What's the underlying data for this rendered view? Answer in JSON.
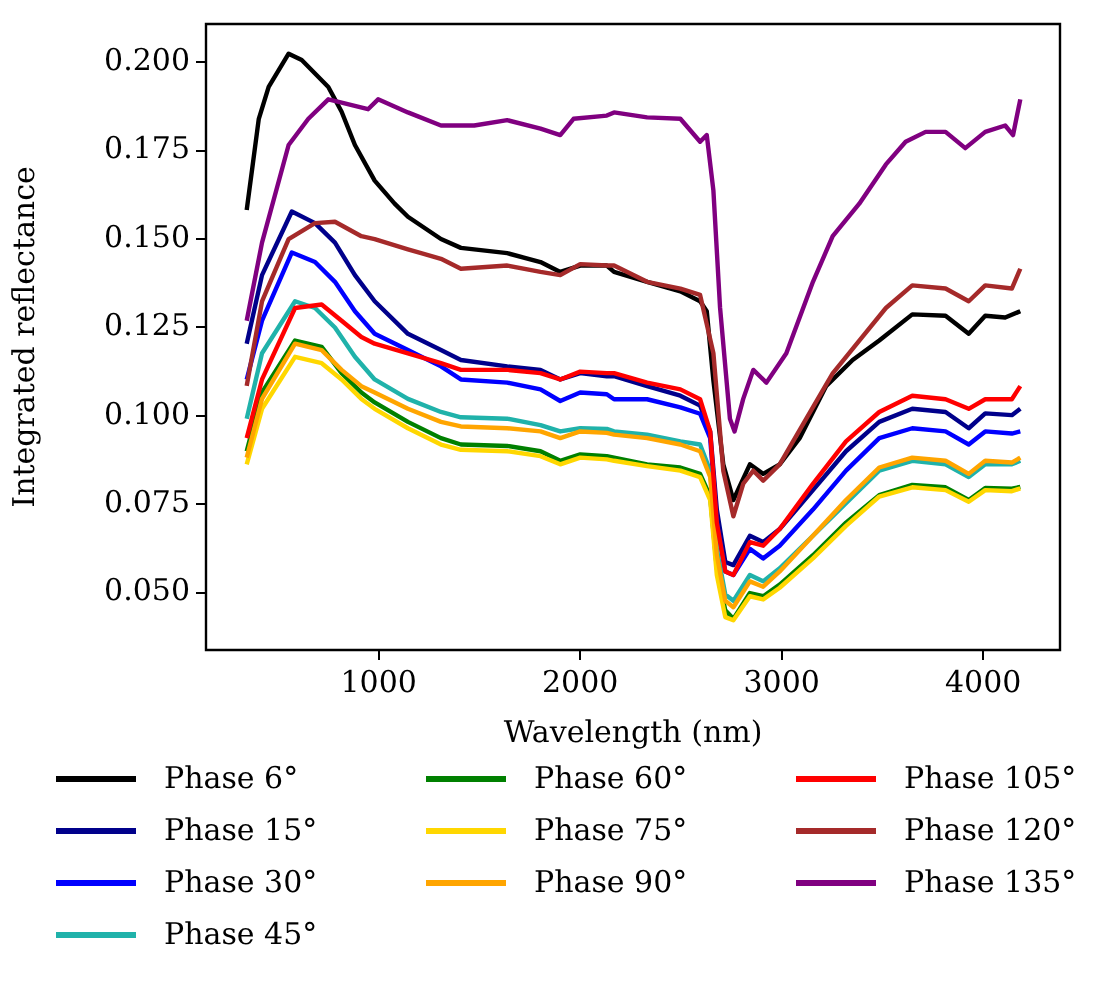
{
  "chart_data": {
    "type": "line",
    "xlabel": "Wavelength (nm)",
    "ylabel": "Integrated reflectance",
    "xlim": [
      143,
      4381
    ],
    "ylim": [
      0.0338,
      0.2108
    ],
    "xticks": [
      1000,
      2000,
      3000,
      4000
    ],
    "yticks": [
      {
        "value": 0.05,
        "label": "0.050"
      },
      0.075,
      {
        "value": 0.1,
        "label": "0.100"
      },
      0.125,
      {
        "value": 0.15,
        "label": "0.150"
      },
      0.175,
      {
        "value": 0.2,
        "label": "0.200"
      }
    ],
    "legend": "bottom",
    "line_style": "solid",
    "series": [
      {
        "name": "Phase 6°",
        "color": "#000000",
        "x": [
          345,
          405,
          454,
          553,
          618,
          750,
          816,
          882,
          980,
          1079,
          1145,
          1309,
          1408,
          1638,
          1803,
          1901,
          2000,
          2132,
          2168,
          2332,
          2497,
          2595,
          2628,
          2661,
          2710,
          2760,
          2842,
          2908,
          2990,
          3089,
          3220,
          3352,
          3484,
          3648,
          3813,
          3928,
          4010,
          4109,
          4184
        ],
        "values": [
          0.1582,
          0.184,
          0.193,
          0.2024,
          0.2006,
          0.193,
          0.186,
          0.1766,
          0.1665,
          0.16,
          0.1563,
          0.15,
          0.1475,
          0.146,
          0.1435,
          0.1407,
          0.1425,
          0.1425,
          0.1407,
          0.1379,
          0.1352,
          0.1324,
          0.1296,
          0.11,
          0.0863,
          0.0762,
          0.0863,
          0.0836,
          0.0863,
          0.0937,
          0.1084,
          0.1158,
          0.1213,
          0.1287,
          0.1283,
          0.1232,
          0.1283,
          0.1278,
          0.1296
        ]
      },
      {
        "name": "Phase 15°",
        "color": "#00008b",
        "x": [
          345,
          421,
          569,
          684,
          783,
          882,
          980,
          1145,
          1309,
          1408,
          1638,
          1803,
          1901,
          2000,
          2132,
          2168,
          2332,
          2497,
          2595,
          2645,
          2678,
          2720,
          2760,
          2842,
          2908,
          2990,
          3155,
          3319,
          3484,
          3648,
          3813,
          3928,
          4010,
          4142,
          4184
        ],
        "values": [
          0.1204,
          0.1398,
          0.1578,
          0.1545,
          0.149,
          0.1398,
          0.1324,
          0.1232,
          0.1186,
          0.1158,
          0.114,
          0.113,
          0.1103,
          0.1121,
          0.1112,
          0.1112,
          0.1084,
          0.1057,
          0.1029,
          0.0956,
          0.0735,
          0.0587,
          0.0578,
          0.0661,
          0.0643,
          0.068,
          0.079,
          0.09,
          0.0983,
          0.102,
          0.1011,
          0.0965,
          0.1007,
          0.1002,
          0.102
        ]
      },
      {
        "name": "Phase 30°",
        "color": "#0000ff",
        "x": [
          345,
          421,
          569,
          684,
          783,
          882,
          980,
          1145,
          1309,
          1408,
          1638,
          1803,
          1901,
          2000,
          2132,
          2168,
          2332,
          2497,
          2595,
          2645,
          2678,
          2720,
          2760,
          2842,
          2908,
          2990,
          3155,
          3319,
          3484,
          3648,
          3813,
          3928,
          4010,
          4142,
          4184
        ],
        "values": [
          0.1103,
          0.1269,
          0.1462,
          0.1435,
          0.1379,
          0.1296,
          0.1232,
          0.1186,
          0.114,
          0.1103,
          0.1094,
          0.1075,
          0.1042,
          0.1066,
          0.1061,
          0.1047,
          0.1047,
          0.1024,
          0.1006,
          0.0937,
          0.0698,
          0.056,
          0.055,
          0.0624,
          0.0597,
          0.0633,
          0.0735,
          0.0845,
          0.0937,
          0.0965,
          0.0956,
          0.0919,
          0.0956,
          0.095,
          0.0956
        ]
      },
      {
        "name": "Phase 45°",
        "color": "#20b2aa",
        "x": [
          345,
          421,
          585,
          684,
          783,
          882,
          980,
          1145,
          1309,
          1408,
          1638,
          1803,
          1901,
          2000,
          2132,
          2168,
          2332,
          2497,
          2595,
          2645,
          2678,
          2720,
          2760,
          2842,
          2908,
          2990,
          3155,
          3319,
          3484,
          3648,
          3813,
          3928,
          4010,
          4142,
          4184
        ],
        "values": [
          0.0992,
          0.1177,
          0.1324,
          0.1305,
          0.125,
          0.1167,
          0.1103,
          0.1048,
          0.1011,
          0.0996,
          0.0992,
          0.0974,
          0.0956,
          0.0965,
          0.0963,
          0.0956,
          0.0947,
          0.0928,
          0.0919,
          0.0845,
          0.0624,
          0.0495,
          0.0477,
          0.055,
          0.0532,
          0.0569,
          0.0661,
          0.0753,
          0.0845,
          0.0873,
          0.0863,
          0.0827,
          0.0863,
          0.0863,
          0.0873
        ]
      },
      {
        "name": "Phase 60°",
        "color": "#008000",
        "x": [
          345,
          421,
          585,
          717,
          816,
          914,
          980,
          1145,
          1309,
          1408,
          1638,
          1803,
          1901,
          2000,
          2132,
          2168,
          2332,
          2497,
          2595,
          2645,
          2678,
          2720,
          2760,
          2842,
          2908,
          2990,
          3155,
          3319,
          3484,
          3648,
          3813,
          3928,
          4010,
          4142,
          4184
        ],
        "values": [
          0.09,
          0.1066,
          0.1213,
          0.1195,
          0.1121,
          0.1066,
          0.1038,
          0.0983,
          0.0937,
          0.0919,
          0.0915,
          0.09,
          0.0873,
          0.0891,
          0.0886,
          0.0882,
          0.0863,
          0.0854,
          0.0836,
          0.0772,
          0.0569,
          0.045,
          0.0426,
          0.0499,
          0.049,
          0.0523,
          0.0606,
          0.0698,
          0.0776,
          0.0805,
          0.0798,
          0.0762,
          0.0796,
          0.0794,
          0.0799
        ]
      },
      {
        "name": "Phase 75°",
        "color": "#ffd700",
        "x": [
          345,
          421,
          585,
          717,
          816,
          914,
          980,
          1145,
          1309,
          1408,
          1638,
          1803,
          1901,
          2000,
          2132,
          2168,
          2332,
          2497,
          2595,
          2645,
          2678,
          2720,
          2760,
          2842,
          2908,
          2990,
          3155,
          3319,
          3484,
          3648,
          3813,
          3928,
          4010,
          4142,
          4184
        ],
        "values": [
          0.0863,
          0.102,
          0.1167,
          0.1149,
          0.1103,
          0.1048,
          0.102,
          0.0965,
          0.0919,
          0.0904,
          0.09,
          0.0886,
          0.0863,
          0.0882,
          0.0877,
          0.0873,
          0.0858,
          0.0845,
          0.0827,
          0.0762,
          0.055,
          0.0431,
          0.0422,
          0.049,
          0.0481,
          0.0514,
          0.0597,
          0.0689,
          0.0772,
          0.0798,
          0.079,
          0.0757,
          0.079,
          0.0787,
          0.0795
        ]
      },
      {
        "name": "Phase 90°",
        "color": "#ffa500",
        "x": [
          345,
          421,
          585,
          717,
          816,
          914,
          980,
          1145,
          1309,
          1408,
          1638,
          1803,
          1901,
          2000,
          2132,
          2168,
          2332,
          2497,
          2595,
          2645,
          2678,
          2720,
          2760,
          2842,
          2908,
          2990,
          3155,
          3319,
          3484,
          3648,
          3813,
          3928,
          4010,
          4142,
          4184
        ],
        "values": [
          0.0882,
          0.1048,
          0.1204,
          0.1186,
          0.113,
          0.1084,
          0.1066,
          0.102,
          0.0983,
          0.097,
          0.0965,
          0.0956,
          0.0937,
          0.0956,
          0.0952,
          0.0947,
          0.0937,
          0.0919,
          0.09,
          0.0827,
          0.0606,
          0.0477,
          0.0459,
          0.0532,
          0.0517,
          0.056,
          0.0661,
          0.0762,
          0.0854,
          0.0882,
          0.0873,
          0.0836,
          0.0873,
          0.0868,
          0.0882
        ]
      },
      {
        "name": "Phase 105°",
        "color": "#ff0000",
        "x": [
          345,
          421,
          585,
          717,
          816,
          914,
          980,
          1145,
          1309,
          1408,
          1638,
          1803,
          1901,
          2000,
          2132,
          2168,
          2332,
          2497,
          2595,
          2645,
          2678,
          2720,
          2760,
          2842,
          2908,
          2990,
          3155,
          3319,
          3484,
          3648,
          3813,
          3928,
          4010,
          4142,
          4184
        ],
        "values": [
          0.0937,
          0.1103,
          0.1305,
          0.1315,
          0.1269,
          0.1223,
          0.1204,
          0.1177,
          0.1149,
          0.113,
          0.113,
          0.1121,
          0.1103,
          0.1125,
          0.1121,
          0.1121,
          0.1094,
          0.1075,
          0.1047,
          0.0956,
          0.0698,
          0.056,
          0.055,
          0.0643,
          0.0633,
          0.068,
          0.0808,
          0.0928,
          0.1011,
          0.1057,
          0.1047,
          0.102,
          0.1047,
          0.1047,
          0.1084
        ]
      },
      {
        "name": "Phase 120°",
        "color": "#a52a2a",
        "x": [
          345,
          421,
          553,
          684,
          783,
          914,
          980,
          1145,
          1309,
          1408,
          1638,
          1803,
          1901,
          2000,
          2132,
          2168,
          2332,
          2497,
          2595,
          2661,
          2710,
          2760,
          2809,
          2859,
          2908,
          2990,
          3122,
          3253,
          3385,
          3517,
          3648,
          3813,
          3928,
          4010,
          4142,
          4184
        ],
        "values": [
          0.1085,
          0.1324,
          0.15,
          0.1545,
          0.1549,
          0.1508,
          0.15,
          0.1471,
          0.1444,
          0.1416,
          0.1425,
          0.1407,
          0.1398,
          0.1429,
          0.1425,
          0.1425,
          0.1379,
          0.136,
          0.1342,
          0.1177,
          0.0845,
          0.0716,
          0.0808,
          0.0845,
          0.0817,
          0.0863,
          0.0992,
          0.112,
          0.1213,
          0.1305,
          0.1369,
          0.136,
          0.1324,
          0.1369,
          0.136,
          0.1416
        ]
      },
      {
        "name": "Phase 135°",
        "color": "#800080",
        "x": [
          345,
          421,
          553,
          651,
          750,
          816,
          947,
          997,
          1145,
          1309,
          1474,
          1638,
          1803,
          1901,
          1967,
          2132,
          2168,
          2332,
          2497,
          2595,
          2628,
          2661,
          2694,
          2743,
          2766,
          2809,
          2859,
          2924,
          3023,
          3155,
          3253,
          3385,
          3517,
          3615,
          3714,
          3813,
          3911,
          4010,
          4109,
          4148,
          4184
        ],
        "values": [
          0.1269,
          0.149,
          0.1766,
          0.184,
          0.1895,
          0.1886,
          0.1867,
          0.1895,
          0.1858,
          0.1821,
          0.1821,
          0.1836,
          0.1812,
          0.1794,
          0.184,
          0.1849,
          0.1858,
          0.1844,
          0.184,
          0.1775,
          0.1794,
          0.1637,
          0.1306,
          0.0992,
          0.0956,
          0.1048,
          0.113,
          0.1094,
          0.1177,
          0.1379,
          0.1508,
          0.16,
          0.1711,
          0.1775,
          0.1803,
          0.1803,
          0.1757,
          0.1803,
          0.1821,
          0.1794,
          0.1895
        ]
      }
    ]
  }
}
